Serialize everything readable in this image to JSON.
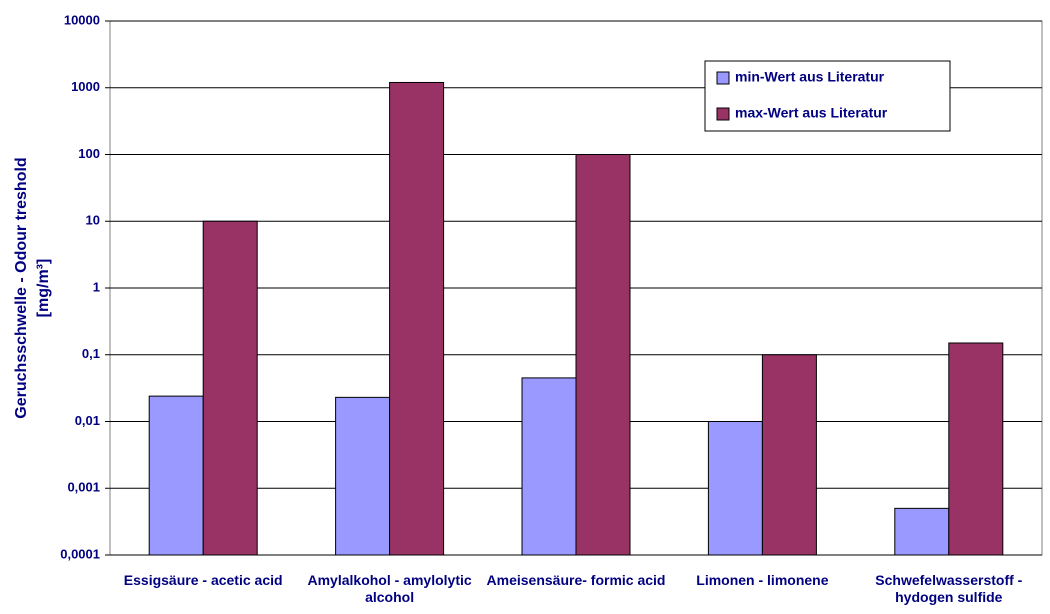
{
  "chart_data": {
    "type": "bar",
    "ylabel": [
      "Geruchsschwelle - Odour treshold",
      "[mg/m³]"
    ],
    "categories": [
      "Essigsäure - acetic acid",
      "Amylalkohol - amylolytic alcohol",
      "Ameisensäure- formic acid",
      "Limonen - limonene",
      "Schwefelwasserstoff - hydogen sulfide"
    ],
    "series": [
      {
        "name": "min-Wert aus Literatur",
        "color": "#9999ff",
        "values": [
          0.024,
          0.023,
          0.045,
          0.01,
          0.0005
        ]
      },
      {
        "name": "max-Wert aus Literatur",
        "color": "#993366",
        "values": [
          10,
          1200,
          100,
          0.1,
          0.15
        ]
      }
    ],
    "ylim": [
      0.0001,
      10000
    ],
    "log_scale": true,
    "yticks": [
      {
        "value": 0.0001,
        "label": "0,0001"
      },
      {
        "value": 0.001,
        "label": "0,001"
      },
      {
        "value": 0.01,
        "label": "0,01"
      },
      {
        "value": 0.1,
        "label": "0,1"
      },
      1,
      10,
      100,
      1000,
      10000
    ],
    "grid": true,
    "legend": "upper right"
  }
}
